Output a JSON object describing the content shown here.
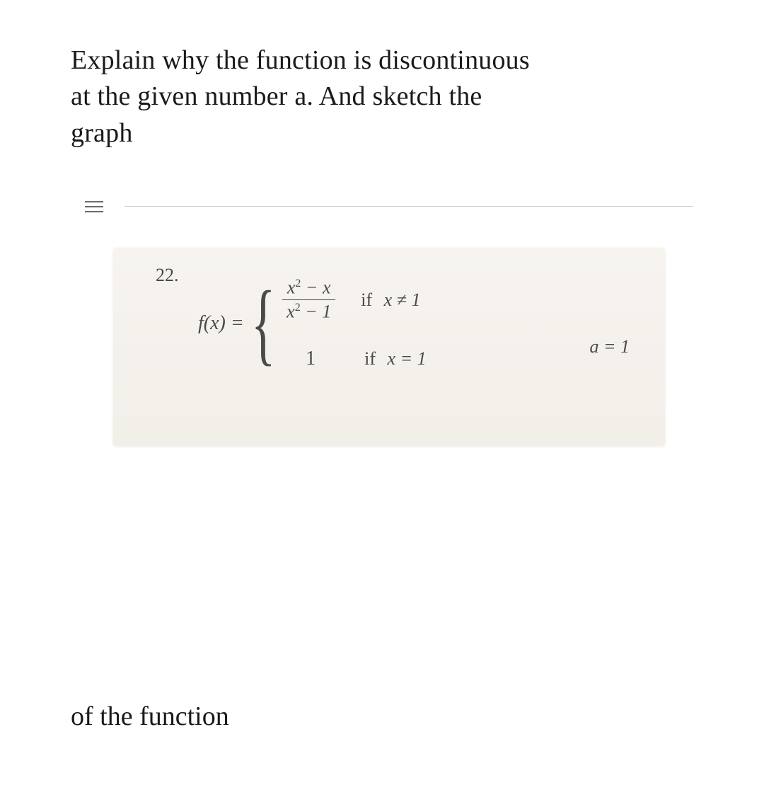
{
  "prompt": {
    "line1": "Explain why the function is discontinuous",
    "line2": "at the given number a. And sketch the",
    "line3": "graph"
  },
  "problem": {
    "number": "22.",
    "lhs": "f(x) =",
    "case1": {
      "numerator": "x² − x",
      "denominator": "x² − 1",
      "condition_if": "if",
      "condition_expr": "x ≠ 1"
    },
    "case2": {
      "value": "1",
      "condition_if": "if",
      "condition_expr": "x = 1"
    },
    "a_value": "a = 1"
  },
  "footer": "of the function",
  "colors": {
    "text": "#1a1a1a",
    "panel_bg_top": "#f7f4f0",
    "panel_bg_bottom": "#f2eee8",
    "panel_text": "#4a4a48",
    "divider": "#cfcfcf",
    "hamburger": "#6a6a6a"
  }
}
